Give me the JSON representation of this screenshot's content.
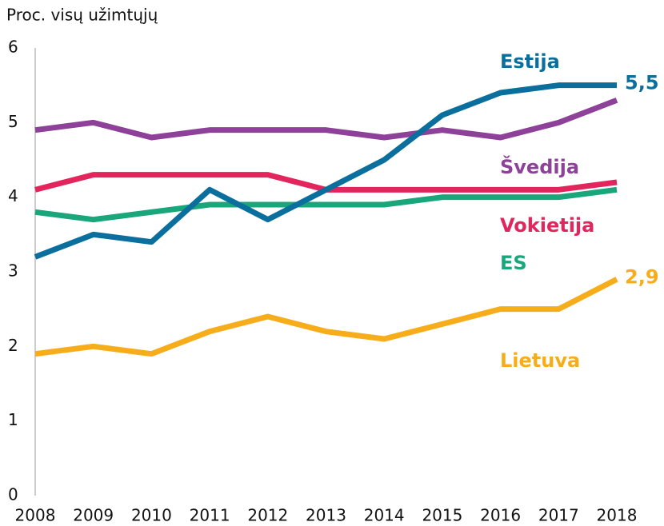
{
  "chart_data": {
    "type": "line",
    "y_label": "Proc. visų užimtųjų",
    "x": [
      2008,
      2009,
      2010,
      2011,
      2012,
      2013,
      2014,
      2015,
      2016,
      2017,
      2018
    ],
    "xlim": [
      2008,
      2018
    ],
    "xticks": [
      2008,
      2009,
      2010,
      2011,
      2012,
      2013,
      2014,
      2015,
      2016,
      2017,
      2018
    ],
    "ylim": [
      0,
      6
    ],
    "yticks": [
      0,
      1,
      2,
      3,
      4,
      5,
      6
    ],
    "grid": false,
    "series": [
      {
        "name": "Lietuva",
        "color": "#f7ad1a",
        "values": [
          1.9,
          2.0,
          1.9,
          2.2,
          2.4,
          2.2,
          2.1,
          2.3,
          2.5,
          2.5,
          2.9
        ],
        "value_labels": [
          null,
          null,
          null,
          null,
          null,
          null,
          null,
          null,
          null,
          null,
          "2,9"
        ]
      },
      {
        "name": "ES",
        "color": "#1aa67b",
        "values": [
          3.8,
          3.7,
          3.8,
          3.9,
          3.9,
          3.9,
          3.9,
          4.0,
          4.0,
          4.0,
          4.1
        ]
      },
      {
        "name": "Vokietija",
        "color": "#e2255c",
        "values": [
          4.1,
          4.3,
          4.3,
          4.3,
          4.3,
          4.1,
          4.1,
          4.1,
          4.1,
          4.1,
          4.2
        ]
      },
      {
        "name": "Švedija",
        "color": "#8d4199",
        "values": [
          4.9,
          5.0,
          4.8,
          4.9,
          4.9,
          4.9,
          4.8,
          4.9,
          4.8,
          5.0,
          5.3
        ]
      },
      {
        "name": "Estija",
        "color": "#0a6f9d",
        "values": [
          3.2,
          3.5,
          3.4,
          4.1,
          3.7,
          4.1,
          4.5,
          5.1,
          5.4,
          5.5,
          5.5
        ],
        "value_labels": [
          null,
          null,
          null,
          null,
          null,
          null,
          null,
          null,
          null,
          null,
          "5,5"
        ]
      }
    ]
  }
}
